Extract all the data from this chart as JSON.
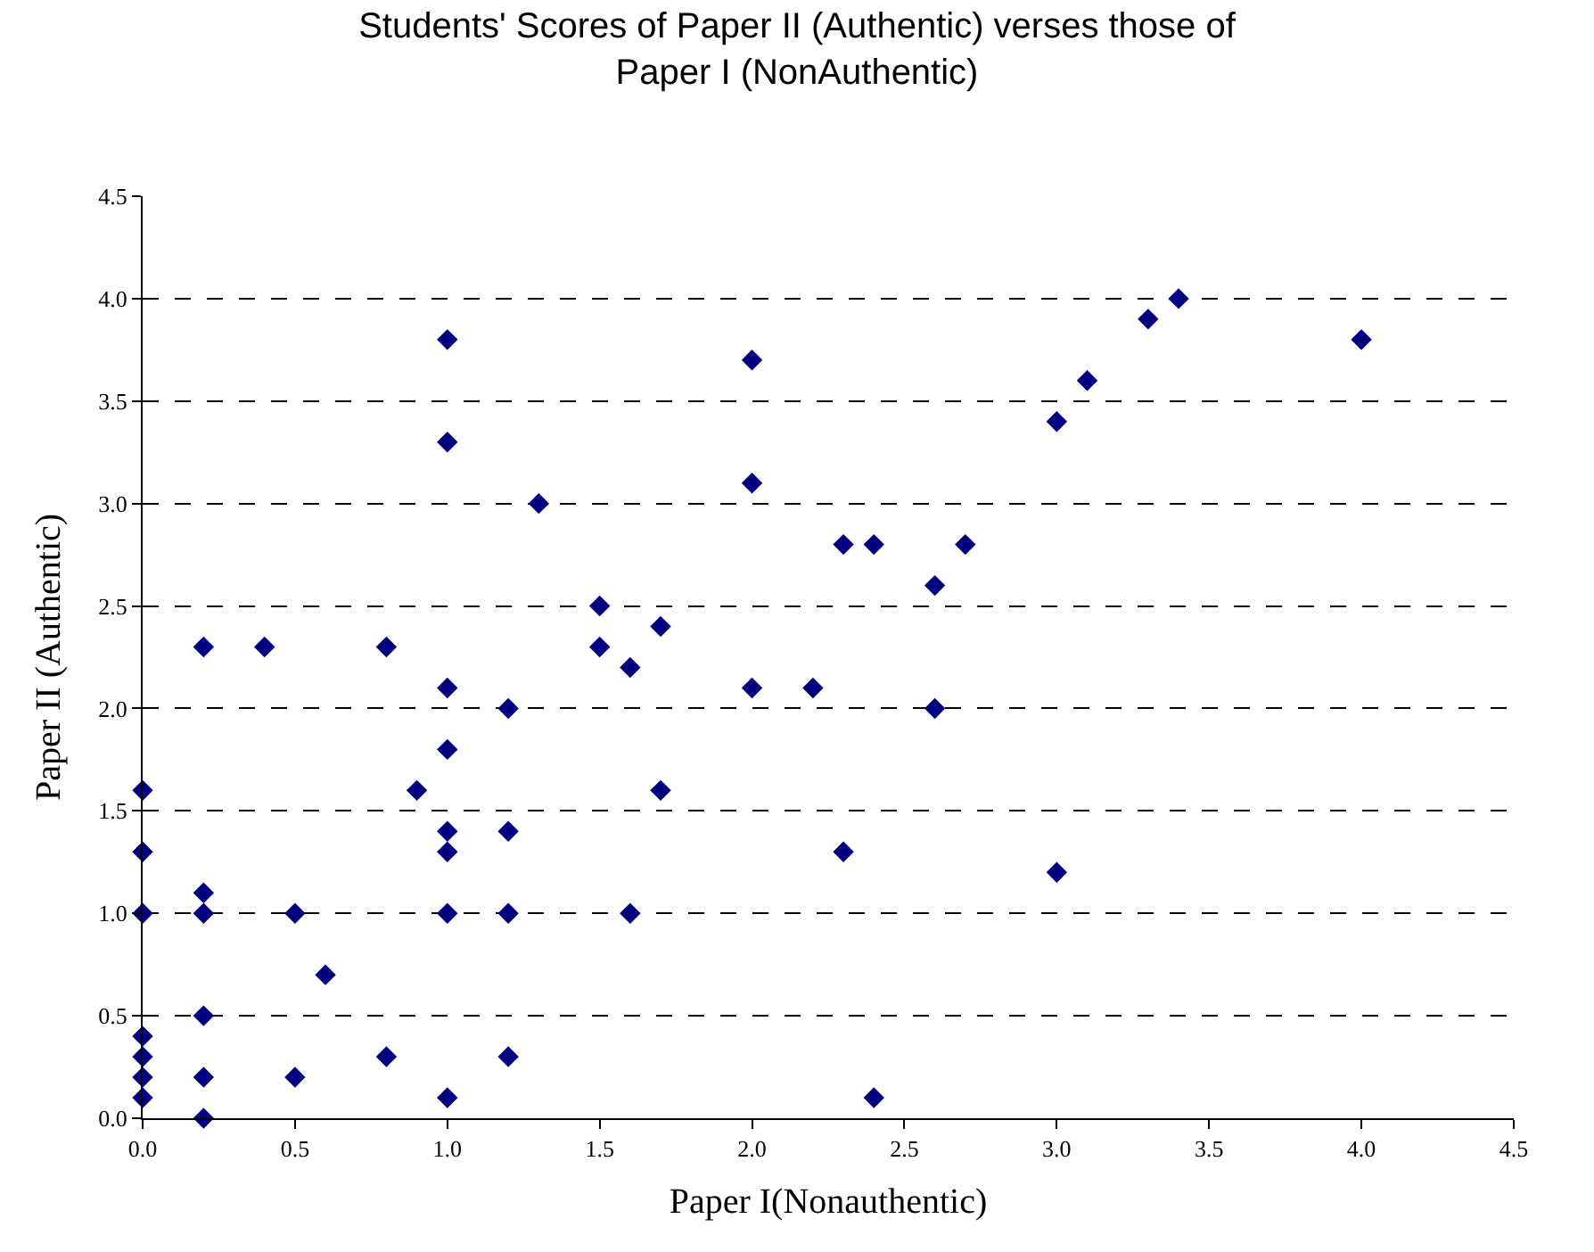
{
  "chart_data": {
    "type": "scatter",
    "title": "Students' Scores of Paper II (Authentic) verses those of\nPaper I (NonAuthentic)",
    "xlabel": "Paper I(Nonauthentic)",
    "ylabel": "Paper II (Authentic)",
    "marker": "diamond",
    "grid": "y",
    "legend": false,
    "line_style": "dashed",
    "xlim": [
      0,
      4.5
    ],
    "ylim": [
      0,
      4.5
    ],
    "xticks": [
      {
        "value": 0,
        "label": "0.0"
      },
      {
        "value": 0.5,
        "label": "0.5"
      },
      {
        "value": 1,
        "label": "1.0"
      },
      {
        "value": 1.5,
        "label": "1.5"
      },
      {
        "value": 2,
        "label": "2.0"
      },
      {
        "value": 2.5,
        "label": "2.5"
      },
      {
        "value": 3,
        "label": "3.0"
      },
      {
        "value": 3.5,
        "label": "3.5"
      },
      {
        "value": 4,
        "label": "4.0"
      },
      {
        "value": 4.5,
        "label": "4.5"
      }
    ],
    "yticks": [
      {
        "value": 0,
        "label": "0.0"
      },
      {
        "value": 0.5,
        "label": "0.5"
      },
      {
        "value": 1,
        "label": "1.0"
      },
      {
        "value": 1.5,
        "label": "1.5"
      },
      {
        "value": 2,
        "label": "2.0"
      },
      {
        "value": 2.5,
        "label": "2.5"
      },
      {
        "value": 3,
        "label": "3.0"
      },
      {
        "value": 3.5,
        "label": "3.5"
      },
      {
        "value": 4,
        "label": "4.0"
      },
      {
        "value": 4.5,
        "label": "4.5"
      }
    ],
    "series": [
      {
        "color": "#000080",
        "x": [
          0,
          0,
          0,
          0,
          0,
          0,
          0,
          0.2,
          0.2,
          0.2,
          0.2,
          0.2,
          0.2,
          0.4,
          0.5,
          0.5,
          0.6,
          0.8,
          0.8,
          0.9,
          1.0,
          1.0,
          1.0,
          1.0,
          1.0,
          1.0,
          1.0,
          1.0,
          1.2,
          1.2,
          1.2,
          1.2,
          1.3,
          1.5,
          1.5,
          1.6,
          1.6,
          1.7,
          1.7,
          2.0,
          2.0,
          2.0,
          2.2,
          2.3,
          2.3,
          2.4,
          2.4,
          2.6,
          2.6,
          2.7,
          3.0,
          3.0,
          3.1,
          3.3,
          3.4,
          4.0
        ],
        "values": [
          1.6,
          1.3,
          1.0,
          0.4,
          0.3,
          0.2,
          0.1,
          2.3,
          1.1,
          1.0,
          0.5,
          0.2,
          0.0,
          2.3,
          1.0,
          0.2,
          0.7,
          2.3,
          0.3,
          1.6,
          3.8,
          3.3,
          2.1,
          1.8,
          1.4,
          1.3,
          1.0,
          0.1,
          2.0,
          1.4,
          1.0,
          0.3,
          3.0,
          2.5,
          2.3,
          2.2,
          1.0,
          2.4,
          1.6,
          3.7,
          3.1,
          2.1,
          2.1,
          2.8,
          1.3,
          2.8,
          0.1,
          2.6,
          2.0,
          2.8,
          3.4,
          1.2,
          3.6,
          3.9,
          4.0,
          3.8
        ]
      }
    ]
  }
}
